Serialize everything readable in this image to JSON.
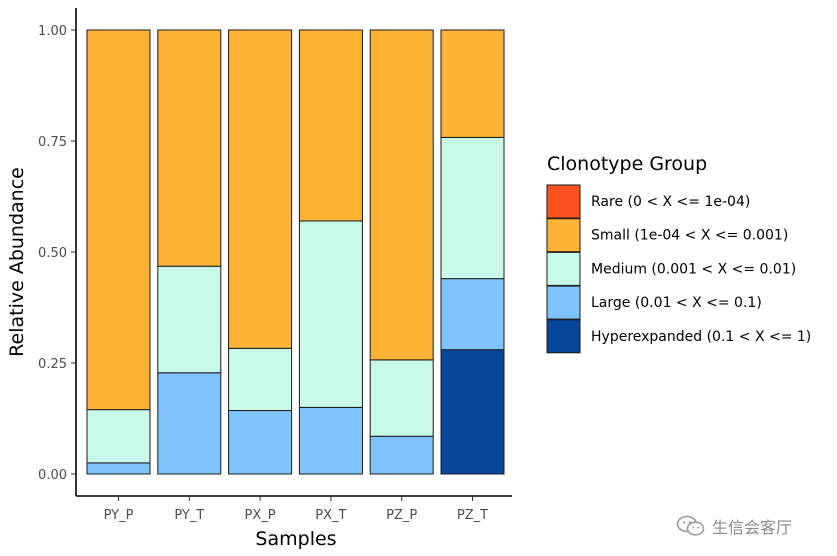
{
  "chart_data": {
    "type": "bar",
    "stacked": true,
    "categories": [
      "PY_P",
      "PY_T",
      "PX_P",
      "PX_T",
      "PZ_P",
      "PZ_T"
    ],
    "series": [
      {
        "name": "Hyperexpanded (0.1 < X <= 1)",
        "color": "#08469b",
        "values": [
          0,
          0,
          0,
          0,
          0,
          0.28
        ]
      },
      {
        "name": "Large (0.01 < X <= 0.1)",
        "color": "#7fc3fd",
        "values": [
          0.025,
          0.228,
          0.143,
          0.15,
          0.085,
          0.16
        ]
      },
      {
        "name": "Medium (0.001 < X <= 0.01)",
        "color": "#c9f9e9",
        "values": [
          0.12,
          0.24,
          0.14,
          0.42,
          0.172,
          0.318
        ]
      },
      {
        "name": "Small (1e-04 < X <= 0.001)",
        "color": "#fdb135",
        "values": [
          0.855,
          0.532,
          0.717,
          0.43,
          0.743,
          0.242
        ]
      },
      {
        "name": "Rare (0 < X <= 1e-04)",
        "color": "#fe5122",
        "values": [
          0,
          0,
          0,
          0,
          0,
          0
        ]
      }
    ],
    "legend_order": [
      "Rare (0 < X <= 1e-04)",
      "Small (1e-04 < X <= 0.001)",
      "Medium (0.001 < X <= 0.01)",
      "Large (0.01 < X <= 0.1)",
      "Hyperexpanded (0.1 < X <= 1)"
    ],
    "legend_title": "Clonotype Group",
    "legend_position": "right",
    "xlabel": "Samples",
    "ylabel": "Relative Abundance",
    "ylim": [
      0,
      1
    ],
    "yticks": [
      0,
      0.25,
      0.5,
      0.75,
      1
    ],
    "ytick_labels": [
      "0.00",
      "0.25",
      "0.50",
      "0.75",
      "1.00"
    ],
    "grid": false
  },
  "watermark": {
    "text": "生信会客厅",
    "icon": "wechat-icon"
  }
}
